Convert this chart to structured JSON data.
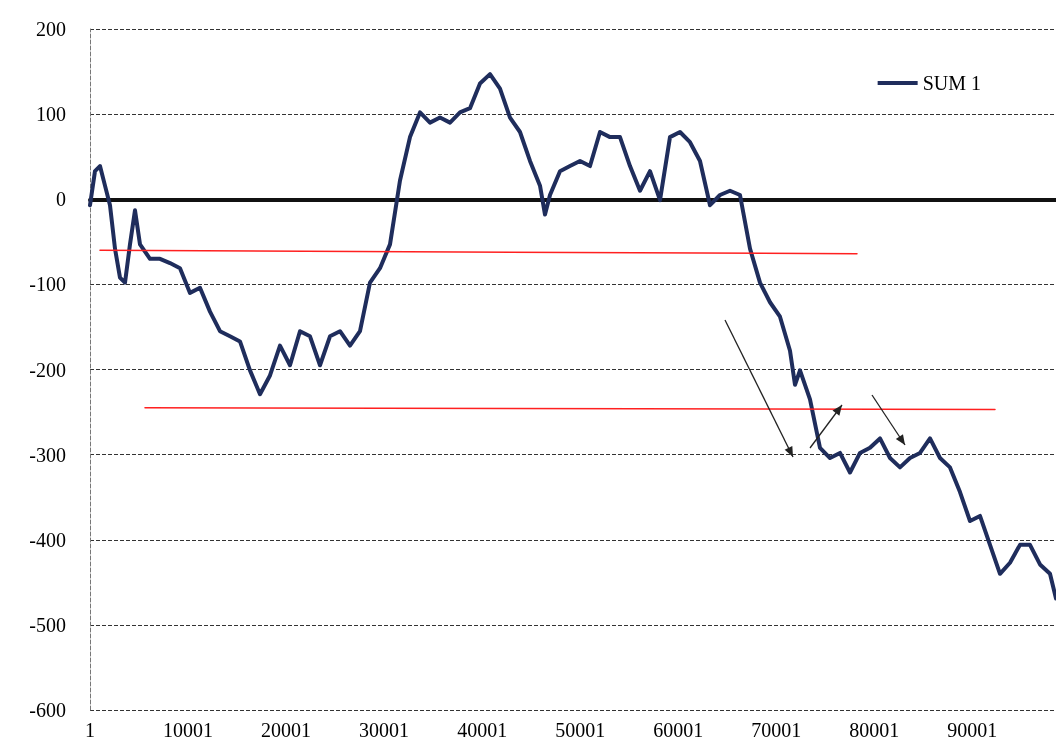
{
  "chart_data": {
    "type": "line",
    "xlim": [
      1,
      98532
    ],
    "xticks": [
      1,
      10001,
      20001,
      30001,
      40001,
      50001,
      60001,
      70001,
      80001,
      90001
    ],
    "ylim": [
      -600,
      200
    ],
    "yticks": [
      -600,
      -500,
      -400,
      -300,
      -200,
      -100,
      0,
      100,
      200
    ],
    "grid": "y",
    "legend": "top right",
    "marker": "none",
    "line_style": "solid",
    "series": [
      {
        "name": "SUM 1",
        "color": "#1f2d5c",
        "x": [
          1,
          510,
          1020,
          1530,
          2040,
          2550,
          3060,
          3570,
          4080,
          4590,
          5100,
          6120,
          7140,
          8160,
          9180,
          10200,
          11220,
          12240,
          13260,
          14280,
          15300,
          16320,
          17340,
          18360,
          19380,
          20400,
          21420,
          22440,
          23460,
          24480,
          25500,
          26520,
          27540,
          28560,
          29580,
          30600,
          31620,
          32640,
          33660,
          34680,
          35700,
          36720,
          37740,
          38760,
          39780,
          40800,
          41820,
          42840,
          43860,
          44880,
          45900,
          46410,
          46920,
          47940,
          48960,
          49980,
          51000,
          52020,
          53040,
          54060,
          55080,
          56100,
          57120,
          58140,
          59160,
          60180,
          61200,
          62220,
          63240,
          64260,
          65280,
          66300,
          67320,
          68340,
          69360,
          70380,
          71400,
          71910,
          72420,
          73440,
          74460,
          75480,
          76500,
          77520,
          78540,
          79560,
          80580,
          81600,
          82620,
          83640,
          84660,
          85680,
          86700,
          87720,
          88740,
          89760,
          90780,
          91800,
          92820,
          93840,
          94860,
          95880,
          96900,
          97920,
          98532
        ],
        "values": [
          -7,
          33,
          39,
          16,
          -7,
          -58,
          -92,
          -98,
          -53,
          -13,
          -53,
          -70,
          -70,
          -75,
          -81,
          -110,
          -104,
          -132,
          -155,
          -161,
          -167,
          -201,
          -229,
          -207,
          -172,
          -195,
          -155,
          -161,
          -195,
          -161,
          -155,
          -172,
          -155,
          -98,
          -81,
          -53,
          22,
          73,
          102,
          90,
          96,
          90,
          102,
          107,
          136,
          147,
          130,
          96,
          79,
          45,
          16,
          -18,
          5,
          33,
          39,
          45,
          39,
          79,
          73,
          73,
          39,
          10,
          33,
          -1,
          73,
          79,
          67,
          45,
          -7,
          5,
          10,
          5,
          -58,
          -98,
          -121,
          -138,
          -178,
          -218,
          -201,
          -235,
          -292,
          -304,
          -298,
          -321,
          -298,
          -292,
          -281,
          -304,
          -315,
          -304,
          -298,
          -281,
          -304,
          -315,
          -344,
          -378,
          -372,
          -406,
          -440,
          -427,
          -406,
          -406,
          -429,
          -440,
          -469
        ]
      },
      {
        "type": "line",
        "color": "#ff2020",
        "x": [
          1020,
          78234
        ],
        "values": [
          -60,
          -64
        ]
      },
      {
        "type": "line",
        "color": "#ff2020",
        "x": [
          5610,
          92310
        ],
        "values": [
          -245,
          -247
        ]
      }
    ]
  }
}
